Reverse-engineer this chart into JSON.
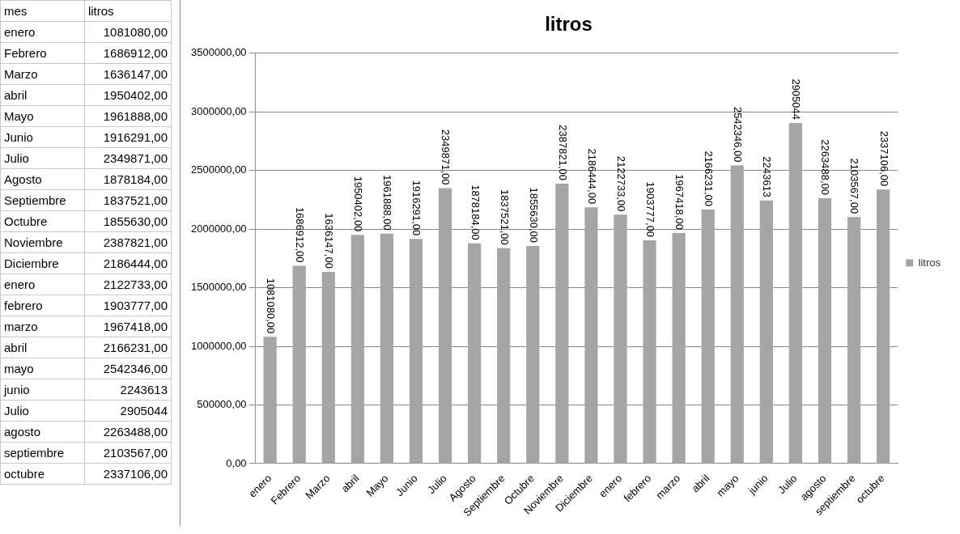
{
  "chart_data": {
    "type": "bar",
    "title": "litros",
    "annotations": [
      "mes"
    ],
    "categories": [
      "enero",
      "Febrero",
      "Marzo",
      "abril",
      "Mayo",
      "Junio",
      "Julio",
      "Agosto",
      "Septiembre",
      "Octubre",
      "Noviembre",
      "Diciembre",
      "enero",
      "febrero",
      "marzo",
      "abril",
      "mayo",
      "junio",
      "Julio",
      "agosto",
      "septiembre",
      "octubre"
    ],
    "series": [
      {
        "name": "litros",
        "color": "#a5a5a5",
        "values": [
          1081080,
          1686912,
          1636147,
          1950402,
          1961888,
          1916291,
          2349871,
          1878184,
          1837521,
          1855630,
          2387821,
          2186444,
          2122733,
          1903777,
          1967418,
          2166231,
          2542346,
          2243613,
          2905044,
          2263488,
          2103567,
          2337106
        ],
        "value_labels": [
          "1081080,00",
          "1686912,00",
          "1636147,00",
          "1950402,00",
          "1961888,00",
          "1916291,00",
          "2349871,00",
          "1878184,00",
          "1837521,00",
          "1855630,00",
          "2387821,00",
          "2186444,00",
          "2122733,00",
          "1903777,00",
          "1967418,00",
          "2166231,00",
          "2542346,00",
          "2243613",
          "2905044",
          "2263488,00",
          "2103567,00",
          "2337106,00"
        ]
      }
    ],
    "ylim": [
      0,
      3500000
    ],
    "yticks": [
      {
        "value": 0,
        "label": "0,00"
      },
      {
        "value": 500000,
        "label": "500000,00"
      },
      {
        "value": 1000000,
        "label": "1000000,00"
      },
      {
        "value": 1500000,
        "label": "1500000,00"
      },
      {
        "value": 2000000,
        "label": "2000000,00"
      },
      {
        "value": 2500000,
        "label": "2500000,00"
      },
      {
        "value": 3000000,
        "label": "3000000,00"
      },
      {
        "value": 3500000,
        "label": "3500000,00"
      }
    ],
    "grid": "y",
    "legend": "right"
  }
}
